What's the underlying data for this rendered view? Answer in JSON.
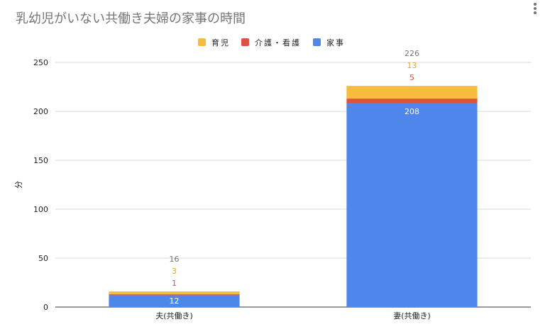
{
  "chart_data": {
    "type": "bar",
    "stacked": true,
    "title": "乳幼児がいない共働き夫婦の家事の時間",
    "ylabel": "分",
    "xlabel": "",
    "ylim": [
      0,
      250
    ],
    "yticks": [
      0,
      50,
      100,
      150,
      200,
      250
    ],
    "grid": true,
    "legend_position": "top",
    "categories": [
      "夫(共働き)",
      "妻(共働き)"
    ],
    "totals": [
      16,
      226
    ],
    "series": [
      {
        "name": "家事",
        "values": [
          12,
          208
        ],
        "color": "#4f86ec"
      },
      {
        "name": "介護・看護",
        "values": [
          1,
          5
        ],
        "color": "#dd5144"
      },
      {
        "name": "育児",
        "values": [
          3,
          13
        ],
        "color": "#f6bb3f"
      }
    ],
    "legend_order": [
      "育児",
      "介護・看護",
      "家事"
    ]
  }
}
